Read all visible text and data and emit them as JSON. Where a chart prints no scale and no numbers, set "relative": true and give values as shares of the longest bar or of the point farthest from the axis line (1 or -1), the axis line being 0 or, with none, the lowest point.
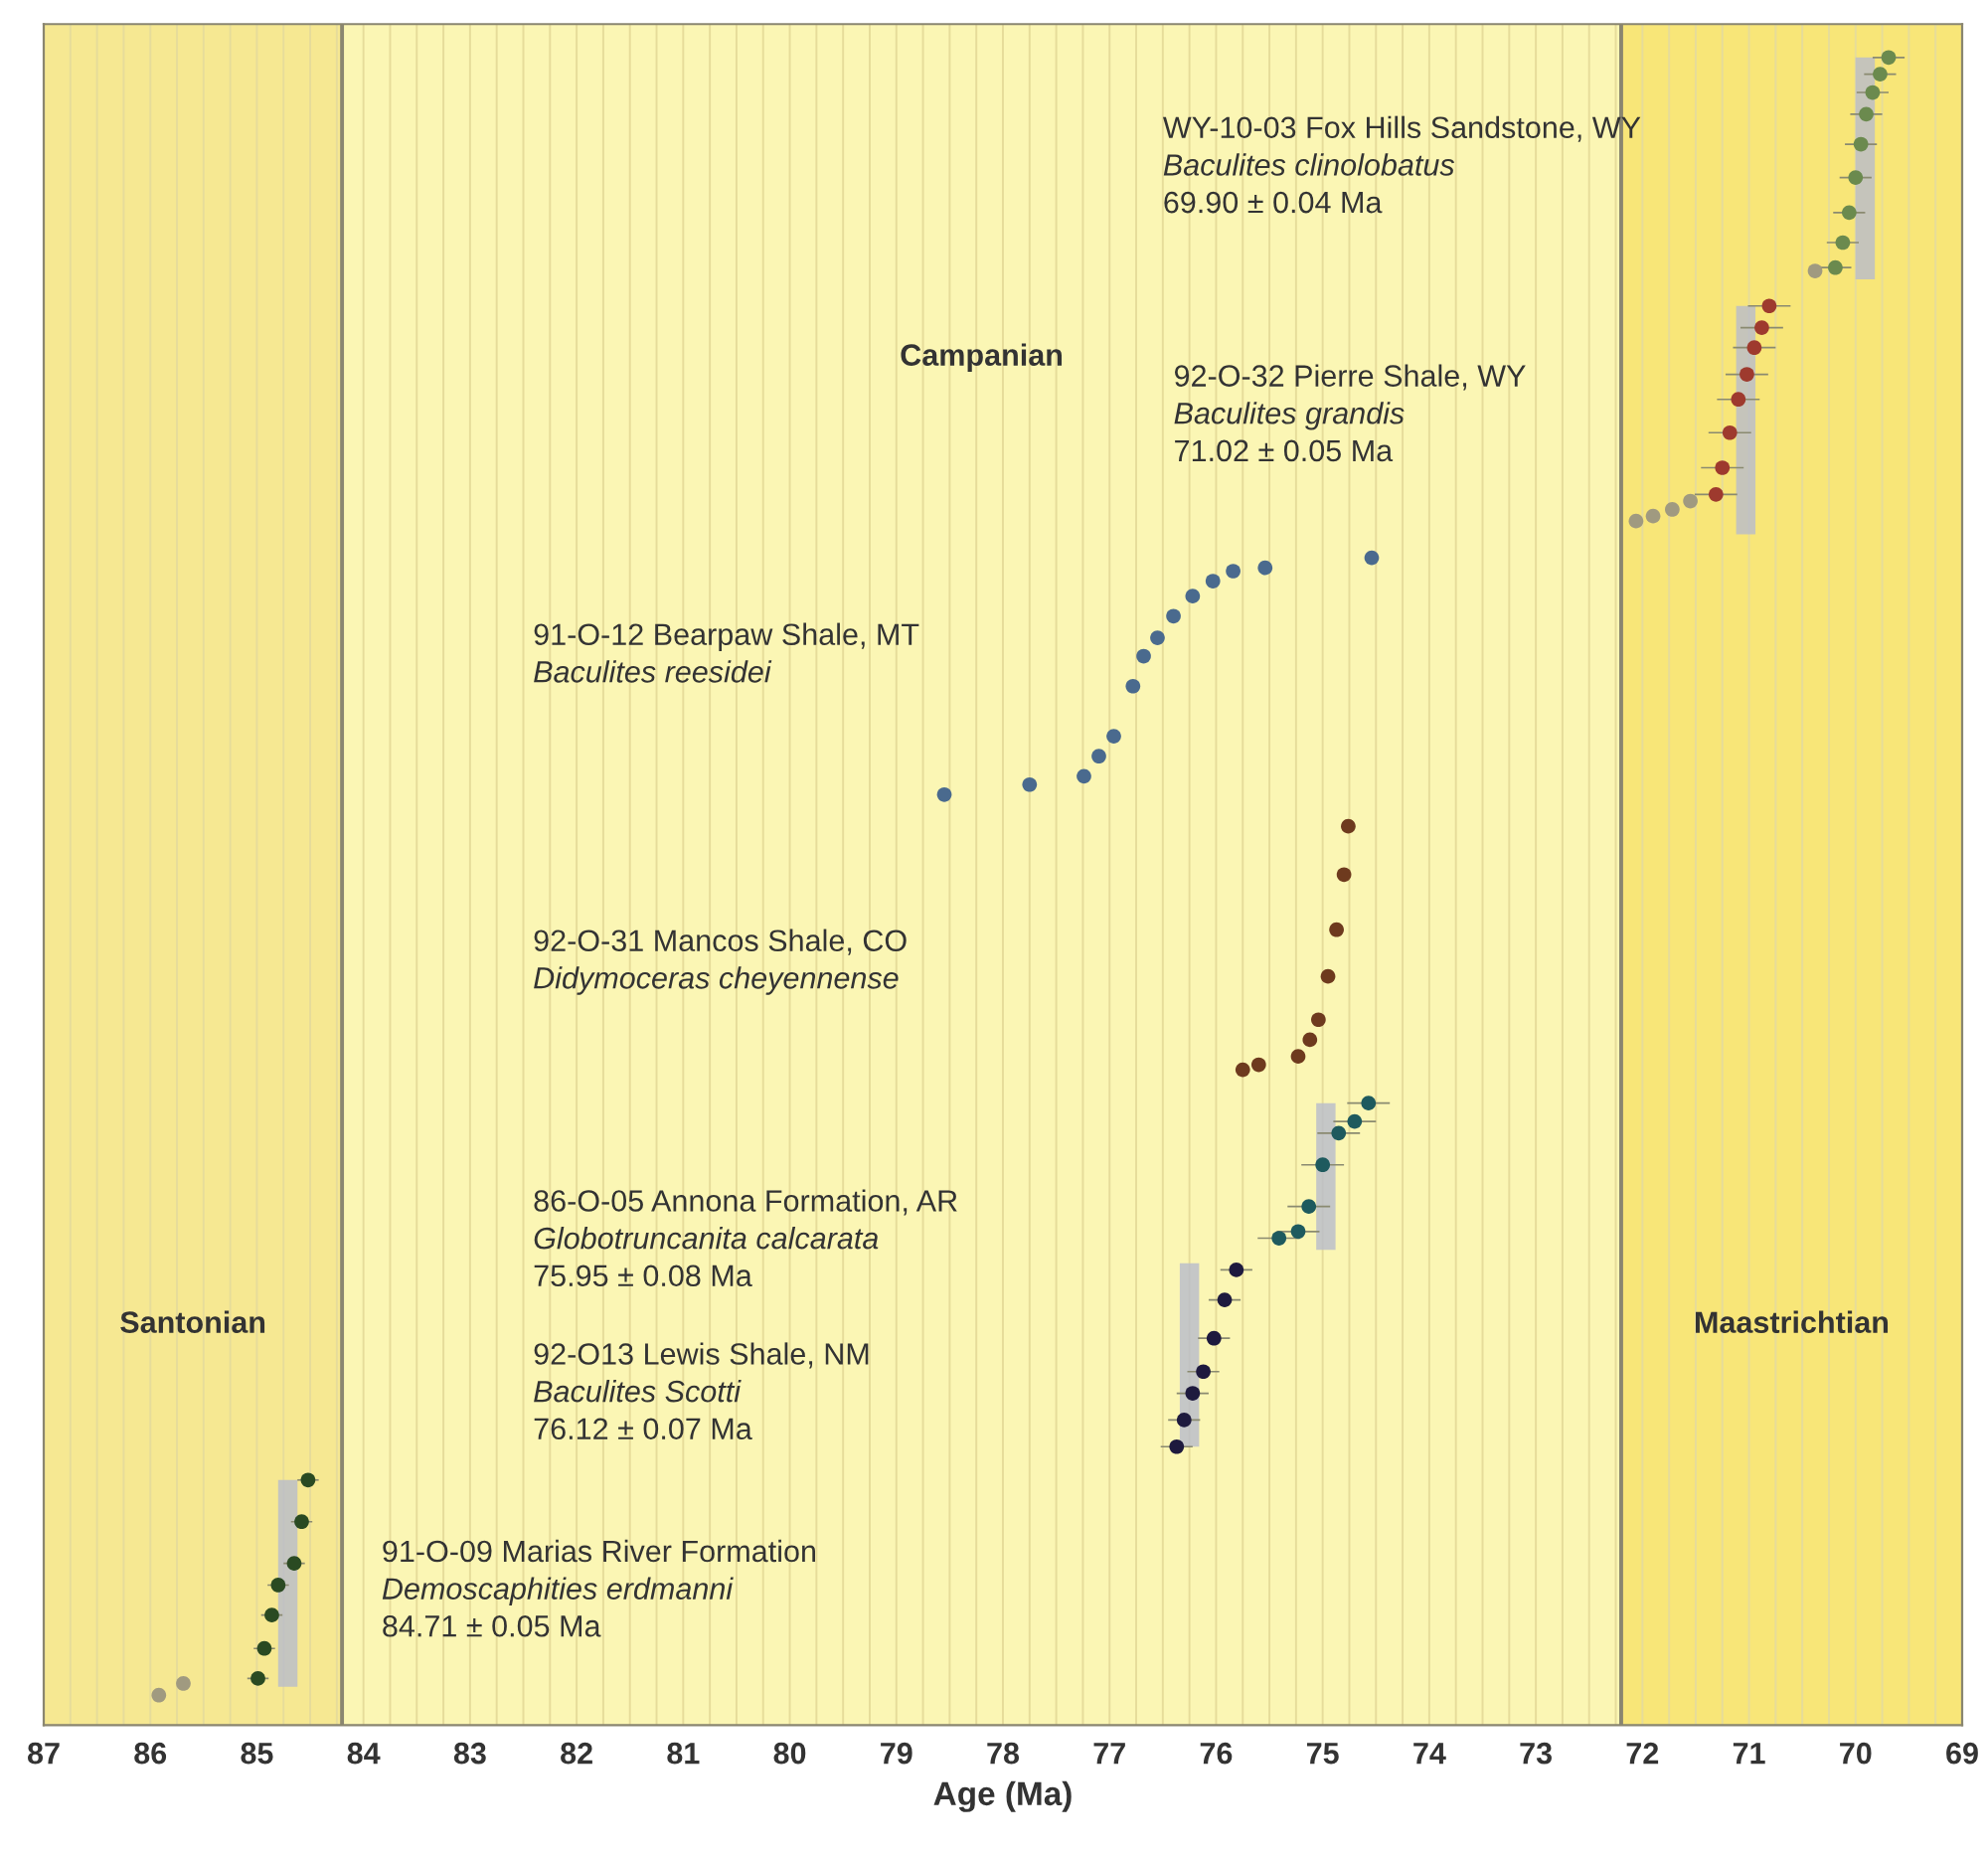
{
  "chart_data": {
    "type": "scatter",
    "relative": true,
    "xlabel": "Age (Ma)",
    "xlim": [
      87,
      69
    ],
    "xticks": [
      87,
      86,
      85,
      84,
      83,
      82,
      81,
      80,
      79,
      78,
      77,
      76,
      75,
      74,
      73,
      72,
      71,
      70,
      69
    ],
    "grid": "x",
    "marker": "circle",
    "legend": false,
    "bands": [
      {
        "axis": "x",
        "from": 87,
        "to": 84.2,
        "label": "Santonian",
        "color": "#f6e892"
      },
      {
        "axis": "x",
        "from": 84.2,
        "to": 72.2,
        "label": "Campanian",
        "color": "#fbf6b4"
      },
      {
        "axis": "x",
        "from": 72.2,
        "to": 69,
        "label": "Maastrichtian",
        "color": "#f8e678"
      }
    ],
    "series": [
      {
        "type": "line",
        "marker": "none",
        "color": "#b8bccc",
        "x": [
          69.91,
          69.91
        ],
        "values": [
          0.867,
          1.0
        ]
      },
      {
        "type": "line",
        "marker": "none",
        "color": "#b8bccc",
        "x": [
          71.03,
          71.03
        ],
        "values": [
          0.714,
          0.851
        ]
      },
      {
        "type": "line",
        "marker": "none",
        "color": "#b8bccc",
        "x": [
          74.97,
          74.97
        ],
        "values": [
          0.285,
          0.373
        ]
      },
      {
        "type": "line",
        "marker": "none",
        "color": "#b8bccc",
        "x": [
          76.25,
          76.25
        ],
        "values": [
          0.167,
          0.277
        ]
      },
      {
        "type": "line",
        "marker": "none",
        "color": "#b8bccc",
        "x": [
          84.71,
          84.71
        ],
        "values": [
          0.023,
          0.147
        ]
      },
      {
        "color": "#6b8a4e",
        "x": [
          70.19,
          70.12,
          70.06,
          70.0,
          69.95,
          69.9,
          69.84,
          69.77,
          69.69
        ],
        "values": [
          0.874,
          0.889,
          0.907,
          0.928,
          0.948,
          0.966,
          0.979,
          0.99,
          1.0
        ],
        "xerrors": [
          0.15,
          0.15,
          0.15,
          0.15,
          0.15,
          0.15,
          0.15,
          0.15,
          0.15
        ]
      },
      {
        "color": "#a09a80",
        "x": [
          70.38
        ],
        "values": [
          0.872
        ]
      },
      {
        "color": "#9e3a2e",
        "x": [
          71.31,
          71.25,
          71.18,
          71.1,
          71.02,
          70.95,
          70.88,
          70.81
        ],
        "values": [
          0.738,
          0.754,
          0.775,
          0.795,
          0.81,
          0.826,
          0.838,
          0.851
        ],
        "xerrors": [
          0.2,
          0.2,
          0.2,
          0.2,
          0.2,
          0.2,
          0.2,
          0.2
        ]
      },
      {
        "color": "#a09a80",
        "x": [
          72.06,
          71.9,
          71.72,
          71.55
        ],
        "values": [
          0.722,
          0.725,
          0.729,
          0.734
        ]
      },
      {
        "color": "#4a6a8e",
        "x": [
          78.55,
          77.75,
          77.24,
          77.1,
          76.96,
          76.78,
          76.68,
          76.55,
          76.4,
          76.22,
          76.03,
          75.84,
          75.54,
          74.54
        ],
        "values": [
          0.558,
          0.564,
          0.569,
          0.581,
          0.593,
          0.623,
          0.641,
          0.652,
          0.665,
          0.677,
          0.686,
          0.692,
          0.694,
          0.7
        ]
      },
      {
        "color": "#6e3a1e",
        "x": [
          75.75,
          75.6,
          75.23,
          75.12,
          75.04,
          74.95,
          74.87,
          74.8,
          74.76
        ],
        "values": [
          0.393,
          0.396,
          0.401,
          0.411,
          0.423,
          0.449,
          0.477,
          0.51,
          0.539
        ]
      },
      {
        "color": "#1e5a5e",
        "x": [
          75.41,
          75.23,
          75.13,
          75.0,
          74.85,
          74.7,
          74.57
        ],
        "values": [
          0.292,
          0.296,
          0.311,
          0.336,
          0.355,
          0.362,
          0.373
        ],
        "xerrors": [
          0.2,
          0.2,
          0.2,
          0.2,
          0.2,
          0.2,
          0.2
        ]
      },
      {
        "color": "#1e1a3e",
        "x": [
          76.37,
          76.3,
          76.22,
          76.12,
          76.02,
          75.92,
          75.81
        ],
        "values": [
          0.167,
          0.183,
          0.199,
          0.212,
          0.232,
          0.255,
          0.273
        ],
        "xerrors": [
          0.15,
          0.15,
          0.15,
          0.15,
          0.15,
          0.15,
          0.15
        ]
      },
      {
        "color": "#2a4a22",
        "x": [
          84.99,
          84.93,
          84.86,
          84.8,
          84.65,
          84.58,
          84.52
        ],
        "values": [
          0.028,
          0.046,
          0.066,
          0.084,
          0.097,
          0.122,
          0.147
        ],
        "xerrors": [
          0.1,
          0.1,
          0.1,
          0.1,
          0.1,
          0.1,
          0.1
        ]
      },
      {
        "color": "#a09a80",
        "x": [
          85.92,
          85.69
        ],
        "values": [
          0.018,
          0.025
        ]
      }
    ],
    "annotations": [
      "WY-10-03 Fox Hills Sandstone, WY\nBaculites clinolobatus\n69.90 ± 0.04 Ma",
      "92-O-32 Pierre Shale, WY\nBaculites grandis\n71.02 ± 0.05 Ma",
      "91-O-12 Bearpaw Shale, MT\nBaculites reesidei",
      "92-O-31 Mancos Shale, CO\nDidymoceras cheyennense",
      "86-O-05 Annona Formation, AR\nGlobotruncanita calcarata\n75.95 ± 0.08 Ma",
      "92-O13 Lewis Shale, NM\nBaculites Scotti\n76.12 ± 0.07 Ma",
      "91-O-09 Marias River Formation\nDemoscaphities erdmanni\n84.71 ± 0.05 Ma"
    ]
  }
}
